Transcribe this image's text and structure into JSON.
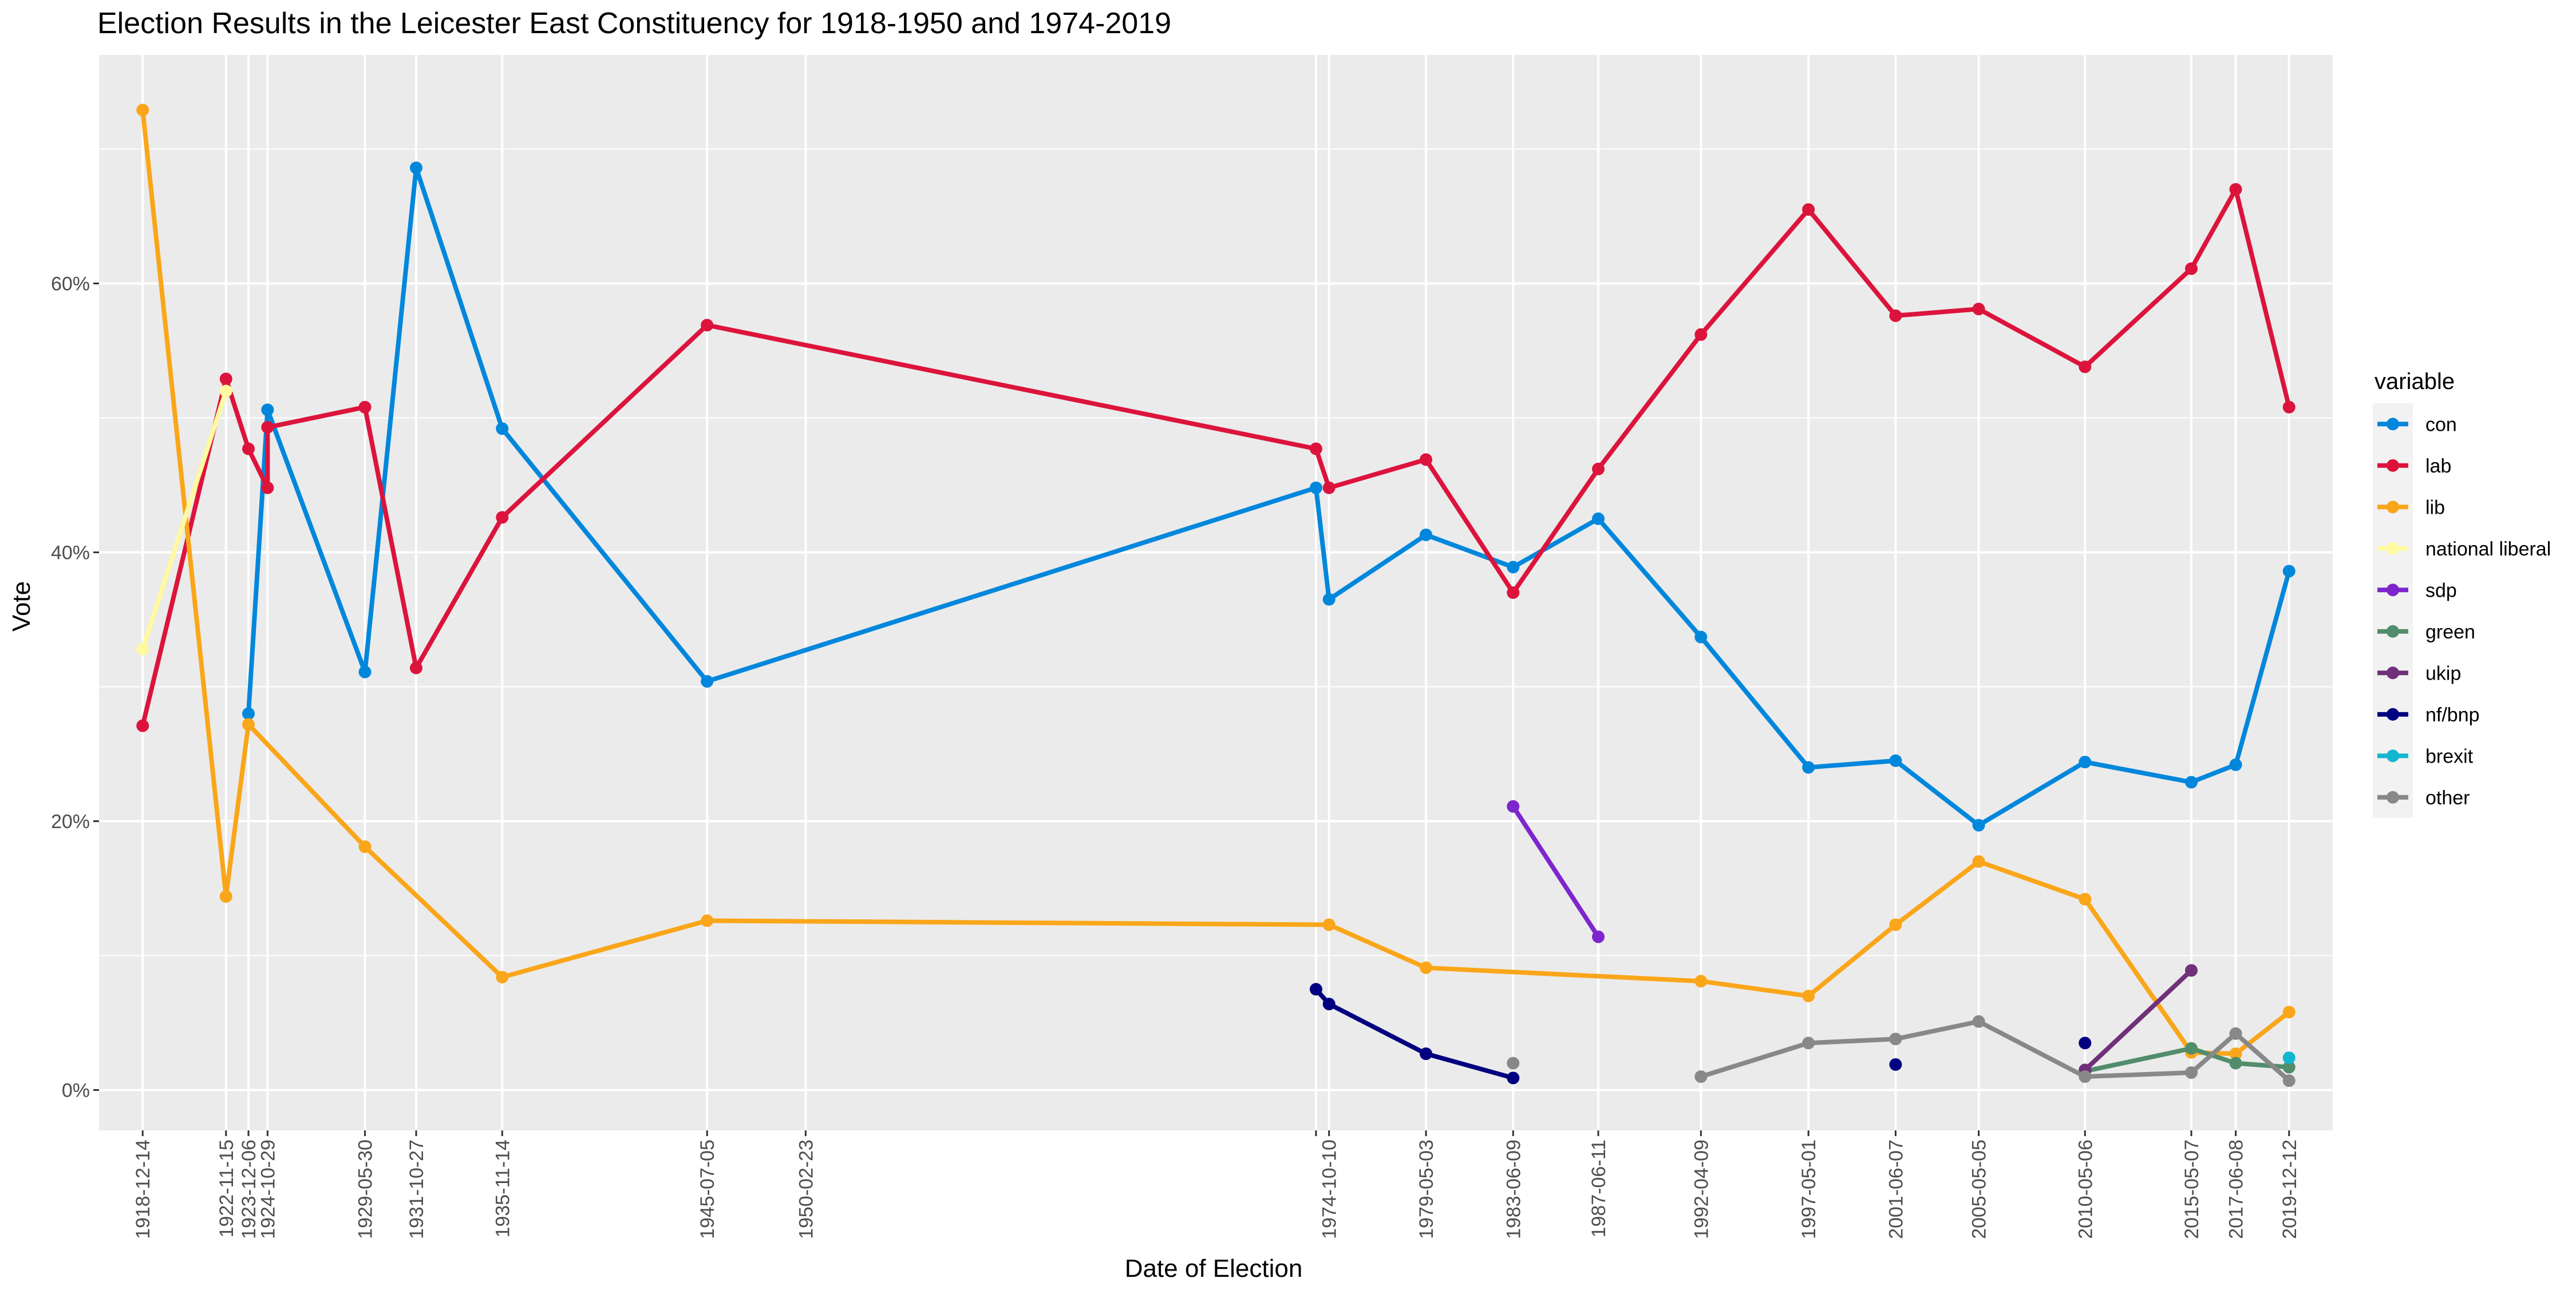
{
  "chart_data": {
    "type": "line",
    "title": "Election Results in the Leicester East Constituency for 1918-1950 and 1974-2019",
    "xlabel": "Date of Election",
    "ylabel": "Vote",
    "y_unit": "percent",
    "ylim": [
      -3,
      77
    ],
    "y_ticks": [
      0,
      20,
      40,
      60
    ],
    "y_tick_labels": [
      "0%",
      "20%",
      "40%",
      "60%"
    ],
    "x_ticks": [
      "1918-12-14",
      "1922-11-15",
      "1923-12-06",
      "1924-10-29",
      "1929-05-30",
      "1931-10-27",
      "1935-11-14",
      "1945-07-05",
      "1950-02-23",
      "1974-02-28",
      "1974-10-10",
      "1979-05-03",
      "1983-06-09",
      "1987-06-11",
      "1992-04-09",
      "1997-05-01",
      "2001-06-07",
      "2005-05-05",
      "2010-05-06",
      "2015-05-07",
      "2017-06-08",
      "2019-12-12"
    ],
    "x_tick_labels": [
      "1918-12-14",
      "1922-11-15",
      "1923-12-06",
      "1924-10-29",
      "1929-05-30",
      "1931-10-27",
      "1935-11-14",
      "1945-07-05",
      "1950-02-23",
      "",
      "1974-10-10",
      "1979-05-03",
      "1983-06-09",
      "1987-06-11",
      "1992-04-09",
      "1997-05-01",
      "2001-06-07",
      "2005-05-05",
      "2010-05-06",
      "2015-05-07",
      "2017-06-08",
      "2019-12-12"
    ],
    "grid": true,
    "legend_title": "variable",
    "legend_position": "right",
    "series": [
      {
        "name": "con",
        "color": "#0087DC",
        "points": [
          [
            "1923-12-06",
            28.0
          ],
          [
            "1924-10-29",
            50.6
          ],
          [
            "1929-05-30",
            31.1
          ],
          [
            "1931-10-27",
            68.6
          ],
          [
            "1935-11-14",
            49.2
          ],
          [
            "1945-07-05",
            30.4
          ],
          [
            "1974-02-28",
            44.8
          ],
          [
            "1974-10-10",
            36.5
          ],
          [
            "1979-05-03",
            41.3
          ],
          [
            "1983-06-09",
            38.9
          ],
          [
            "1987-06-11",
            42.5
          ],
          [
            "1992-04-09",
            33.7
          ],
          [
            "1997-05-01",
            24.0
          ],
          [
            "2001-06-07",
            24.5
          ],
          [
            "2005-05-05",
            19.7
          ],
          [
            "2010-05-06",
            24.4
          ],
          [
            "2015-05-07",
            22.9
          ],
          [
            "2017-06-08",
            24.2
          ],
          [
            "2019-12-12",
            38.6
          ]
        ]
      },
      {
        "name": "lab",
        "color": "#DC143C",
        "points": [
          [
            "1918-12-14",
            27.1
          ],
          [
            "1922-11-15",
            52.9
          ],
          [
            "1923-12-06",
            47.7
          ],
          [
            "1924-10-29",
            44.8
          ],
          [
            "1924-10-29",
            49.3
          ],
          [
            "1929-05-30",
            50.8
          ],
          [
            "1931-10-27",
            31.4
          ],
          [
            "1935-11-14",
            42.6
          ],
          [
            "1945-07-05",
            56.9
          ],
          [
            "1974-02-28",
            47.7
          ],
          [
            "1974-10-10",
            44.8
          ],
          [
            "1979-05-03",
            46.9
          ],
          [
            "1983-06-09",
            37.0
          ],
          [
            "1987-06-11",
            46.2
          ],
          [
            "1992-04-09",
            56.2
          ],
          [
            "1997-05-01",
            65.5
          ],
          [
            "2001-06-07",
            57.6
          ],
          [
            "2005-05-05",
            58.1
          ],
          [
            "2010-05-06",
            53.8
          ],
          [
            "2015-05-07",
            61.1
          ],
          [
            "2017-06-08",
            67.0
          ],
          [
            "2019-12-12",
            50.8
          ]
        ]
      },
      {
        "name": "lib",
        "color": "#FAA61A",
        "points": [
          [
            "1918-12-14",
            72.9
          ],
          [
            "1922-11-15",
            14.4
          ],
          [
            "1923-12-06",
            27.2
          ],
          [
            "1929-05-30",
            18.1
          ],
          [
            "1935-11-14",
            8.4
          ],
          [
            "1945-07-05",
            12.6
          ],
          [
            "1974-10-10",
            12.3
          ],
          [
            "1979-05-03",
            9.1
          ],
          [
            "1992-04-09",
            8.1
          ],
          [
            "1997-05-01",
            7.0
          ],
          [
            "2001-06-07",
            12.3
          ],
          [
            "2005-05-05",
            17.0
          ],
          [
            "2010-05-06",
            14.2
          ],
          [
            "2015-05-07",
            2.8
          ],
          [
            "2017-06-08",
            2.7
          ],
          [
            "2019-12-12",
            5.8
          ]
        ]
      },
      {
        "name": "national liberal",
        "color": "#FFF9A0",
        "points": [
          [
            "1918-12-14",
            32.8
          ],
          [
            "1922-11-15",
            52.0
          ]
        ]
      },
      {
        "name": "sdp",
        "color": "#7D26CD",
        "points": [
          [
            "1983-06-09",
            21.1
          ],
          [
            "1987-06-11",
            11.4
          ]
        ]
      },
      {
        "name": "green",
        "color": "#528D6B",
        "points": [
          [
            "2010-05-06",
            1.4
          ],
          [
            "2015-05-07",
            3.1
          ],
          [
            "2017-06-08",
            2.0
          ],
          [
            "2019-12-12",
            1.7
          ]
        ]
      },
      {
        "name": "ukip",
        "color": "#70307A",
        "points": [
          [
            "2010-05-06",
            1.5
          ],
          [
            "2015-05-07",
            8.9
          ]
        ]
      },
      {
        "name": "nf/bnp",
        "color": "#000080",
        "points": [
          [
            "1974-02-28",
            7.5
          ],
          [
            "1974-10-10",
            6.4
          ],
          [
            "1979-05-03",
            2.7
          ],
          [
            "1983-06-09",
            0.9
          ],
          [
            null,
            null
          ],
          [
            "2001-06-07",
            1.9
          ],
          [
            null,
            null
          ],
          [
            "2010-05-06",
            3.5
          ]
        ]
      },
      {
        "name": "brexit",
        "color": "#12B6CF",
        "points": [
          [
            "2019-12-12",
            2.4
          ]
        ]
      },
      {
        "name": "other",
        "color": "#888888",
        "points": [
          [
            "1983-06-09",
            2.0
          ],
          [
            null,
            null
          ],
          [
            "1992-04-09",
            1.0
          ],
          [
            "1997-05-01",
            3.5
          ],
          [
            "2001-06-07",
            3.8
          ],
          [
            "2005-05-05",
            5.1
          ],
          [
            "2010-05-06",
            1.0
          ],
          [
            "2015-05-07",
            1.3
          ],
          [
            "2017-06-08",
            4.2
          ],
          [
            "2019-12-12",
            0.7
          ]
        ]
      }
    ]
  }
}
